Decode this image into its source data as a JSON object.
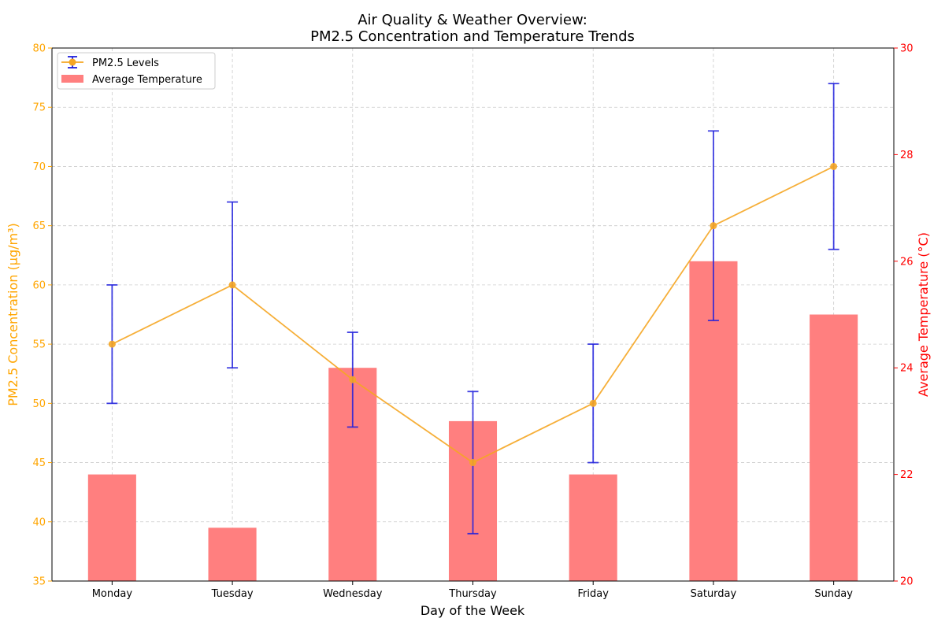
{
  "chart_data": {
    "type": "bar",
    "title_line1": "Air Quality & Weather Overview:",
    "title_line2": "PM2.5 Concentration and Temperature Trends",
    "xlabel": "Day of the Week",
    "ylabel_left": "PM2.5 Concentration (μg/m³)",
    "ylabel_right": "Average Temperature (°C)",
    "categories": [
      "Monday",
      "Tuesday",
      "Wednesday",
      "Thursday",
      "Friday",
      "Saturday",
      "Sunday"
    ],
    "pm25": {
      "name": "PM2.5 Levels",
      "values": [
        55,
        60,
        52,
        45,
        50,
        65,
        70
      ],
      "err_low": [
        50,
        53,
        48,
        39,
        45,
        57,
        63
      ],
      "err_high": [
        60,
        67,
        56,
        51,
        55,
        73,
        77
      ],
      "line_color": "#f5a623",
      "error_color": "#1f1fdd"
    },
    "temperature": {
      "name": "Average Temperature",
      "values": [
        22,
        21,
        24,
        23,
        22,
        26,
        25
      ],
      "color": "#ff7f7f"
    },
    "ylim_left": [
      35,
      80
    ],
    "ylim_right": [
      20,
      30
    ],
    "yticks_left": [
      35,
      40,
      45,
      50,
      55,
      60,
      65,
      70,
      75,
      80
    ],
    "yticks_right": [
      20,
      22,
      24,
      26,
      28,
      30
    ],
    "left_axis_color": "#ffa500",
    "right_axis_color": "#ff0000",
    "grid": true,
    "legend_position": "upper-left"
  }
}
